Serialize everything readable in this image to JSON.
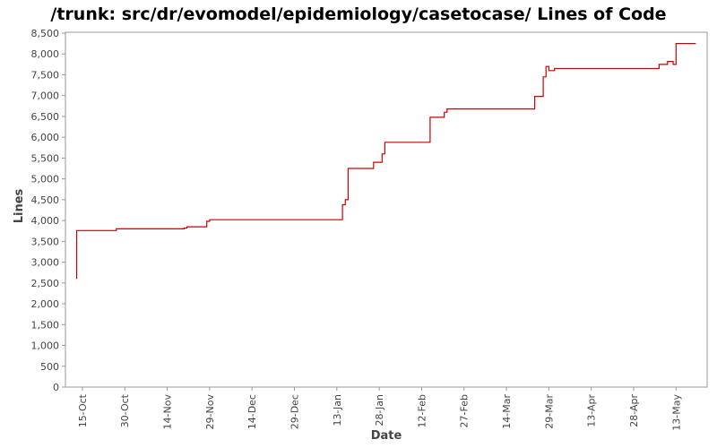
{
  "chart_data": {
    "type": "line",
    "title": "/trunk: src/dr/evomodel/epidemiology/casetocase/ Lines of Code",
    "xlabel": "Date",
    "ylabel": "Lines",
    "ylim": [
      0,
      8500
    ],
    "yticks": [
      0,
      500,
      1000,
      1500,
      2000,
      2500,
      3000,
      3500,
      4000,
      4500,
      5000,
      5500,
      6000,
      6500,
      7000,
      7500,
      8000,
      8500
    ],
    "xlim": [
      "2012-10-09",
      "2013-05-24"
    ],
    "xticks": [
      {
        "date": "2012-10-15",
        "label": "15-Oct"
      },
      {
        "date": "2012-10-30",
        "label": "30-Oct"
      },
      {
        "date": "2012-11-14",
        "label": "14-Nov"
      },
      {
        "date": "2012-11-29",
        "label": "29-Nov"
      },
      {
        "date": "2012-12-14",
        "label": "14-Dec"
      },
      {
        "date": "2012-12-29",
        "label": "29-Dec"
      },
      {
        "date": "2013-01-13",
        "label": "13-Jan"
      },
      {
        "date": "2013-01-28",
        "label": "28-Jan"
      },
      {
        "date": "2013-02-12",
        "label": "12-Feb"
      },
      {
        "date": "2013-02-27",
        "label": "27-Feb"
      },
      {
        "date": "2013-03-14",
        "label": "14-Mar"
      },
      {
        "date": "2013-03-29",
        "label": "29-Mar"
      },
      {
        "date": "2013-04-13",
        "label": "13-Apr"
      },
      {
        "date": "2013-04-28",
        "label": "28-Apr"
      },
      {
        "date": "2013-05-13",
        "label": "13-May"
      }
    ],
    "grid": false,
    "line_color": "#cc0000",
    "series": [
      {
        "step": true,
        "x": [
          "2012-10-13",
          "2012-10-13",
          "2012-10-27",
          "2012-11-20",
          "2012-11-21",
          "2012-11-28",
          "2012-11-29",
          "2013-01-15",
          "2013-01-16",
          "2013-01-17",
          "2013-01-26",
          "2013-01-29",
          "2013-01-30",
          "2013-02-15",
          "2013-02-20",
          "2013-02-21",
          "2013-03-24",
          "2013-03-27",
          "2013-03-28",
          "2013-03-29",
          "2013-03-31",
          "2013-05-07",
          "2013-05-10",
          "2013-05-12",
          "2013-05-13",
          "2013-05-20"
        ],
        "y": [
          2600,
          3760,
          3800,
          3820,
          3850,
          3980,
          4020,
          4380,
          4500,
          5250,
          5400,
          5600,
          5880,
          6480,
          6600,
          6680,
          6980,
          7450,
          7700,
          7600,
          7650,
          7750,
          7820,
          7750,
          8250,
          8250
        ]
      }
    ]
  }
}
